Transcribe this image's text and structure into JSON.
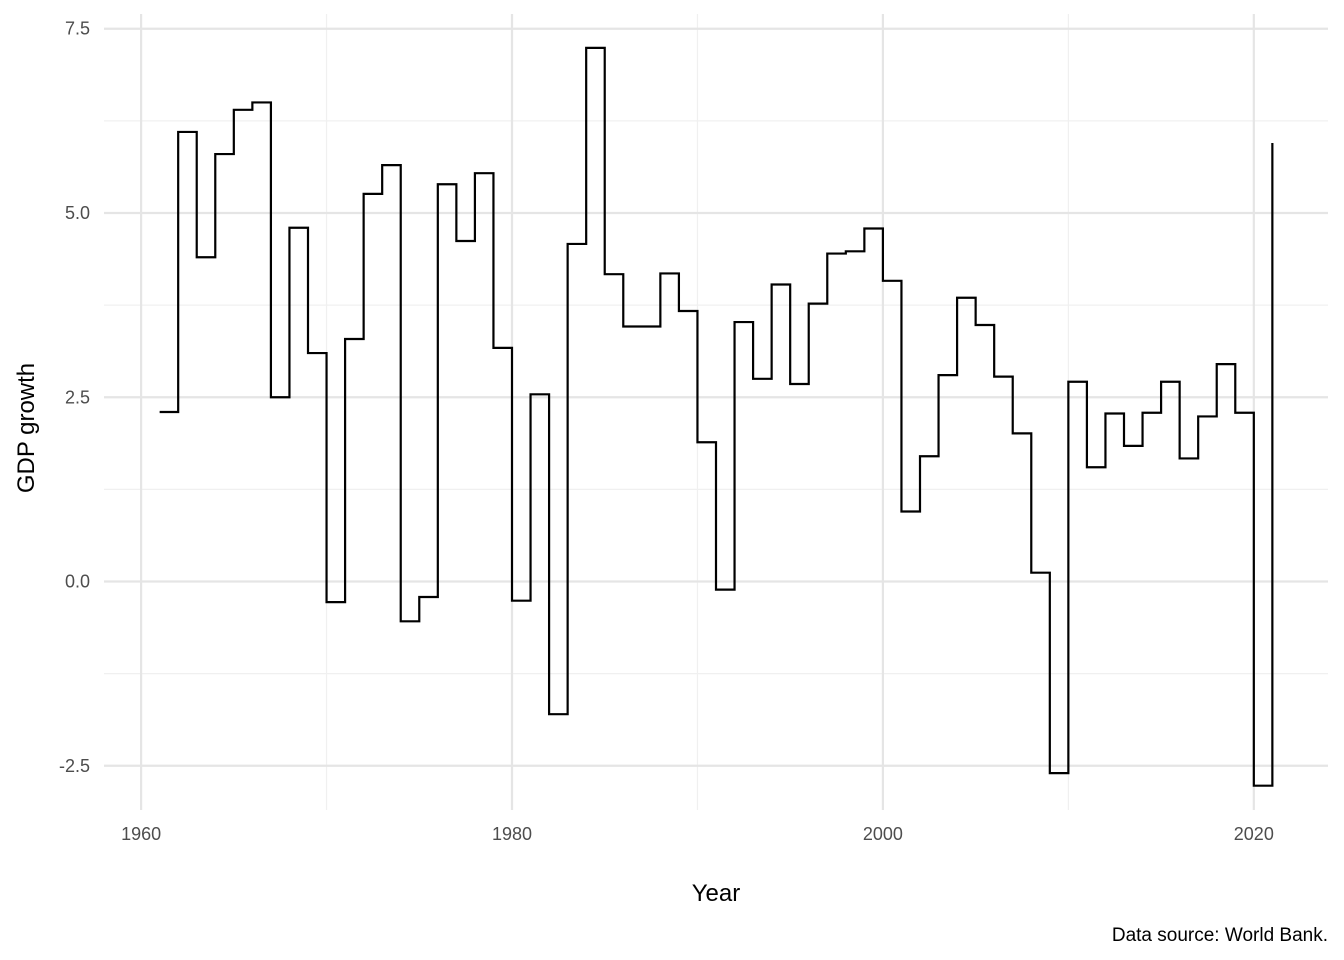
{
  "chart_data": {
    "type": "line",
    "step": true,
    "xlabel": "Year",
    "ylabel": "GDP growth",
    "caption": "Data source: World Bank.",
    "xlim": [
      1958,
      2024
    ],
    "ylim": [
      -3.1,
      7.7
    ],
    "x_ticks": [
      1960,
      1980,
      2000,
      2020
    ],
    "x_tick_labels": [
      "1960",
      "1980",
      "2000",
      "2020"
    ],
    "y_ticks": [
      -2.5,
      0.0,
      2.5,
      5.0,
      7.5
    ],
    "y_tick_labels": [
      "-2.5",
      "0.0",
      "2.5",
      "5.0",
      "7.5"
    ],
    "grid": true,
    "x": [
      1961,
      1962,
      1963,
      1964,
      1965,
      1966,
      1967,
      1968,
      1969,
      1970,
      1971,
      1972,
      1973,
      1974,
      1975,
      1976,
      1977,
      1978,
      1979,
      1980,
      1981,
      1982,
      1983,
      1984,
      1985,
      1986,
      1987,
      1988,
      1989,
      1990,
      1991,
      1992,
      1993,
      1994,
      1995,
      1996,
      1997,
      1998,
      1999,
      2000,
      2001,
      2002,
      2003,
      2004,
      2005,
      2006,
      2007,
      2008,
      2009,
      2010,
      2011,
      2012,
      2013,
      2014,
      2015,
      2016,
      2017,
      2018,
      2019,
      2020,
      2021
    ],
    "values": [
      2.3,
      6.1,
      4.4,
      5.8,
      6.4,
      6.5,
      2.5,
      4.8,
      3.1,
      -0.28,
      3.29,
      5.26,
      5.65,
      -0.54,
      -0.21,
      5.39,
      4.62,
      5.54,
      3.17,
      -0.26,
      2.54,
      -1.8,
      4.58,
      7.24,
      4.17,
      3.46,
      3.46,
      4.18,
      3.67,
      1.89,
      -0.11,
      3.52,
      2.75,
      4.03,
      2.68,
      3.77,
      4.45,
      4.48,
      4.79,
      4.08,
      0.95,
      1.7,
      2.8,
      3.85,
      3.48,
      2.78,
      2.01,
      0.12,
      -2.6,
      2.71,
      1.55,
      2.28,
      1.84,
      2.29,
      2.71,
      1.67,
      2.24,
      2.95,
      2.29,
      -2.77,
      5.95
    ]
  }
}
